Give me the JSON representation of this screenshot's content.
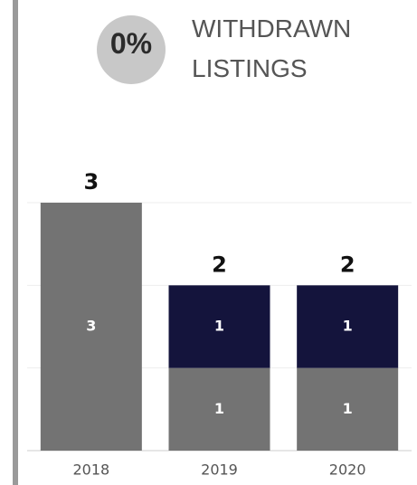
{
  "kpi": {
    "value": 0,
    "label": "0%",
    "title": "WITHDRAWN LISTINGS"
  },
  "chart_data": {
    "type": "stacked_bar",
    "categories": [
      "2018",
      "2019",
      "2020"
    ],
    "series": [
      {
        "color": "#737373",
        "values": [
          3,
          1,
          1
        ]
      },
      {
        "color": "#14143c",
        "values": [
          null,
          1,
          1
        ]
      }
    ],
    "totals": [
      3,
      2,
      2
    ],
    "ylim": [
      0,
      3
    ],
    "grid_values": [
      1,
      2,
      3
    ],
    "grid": true
  }
}
